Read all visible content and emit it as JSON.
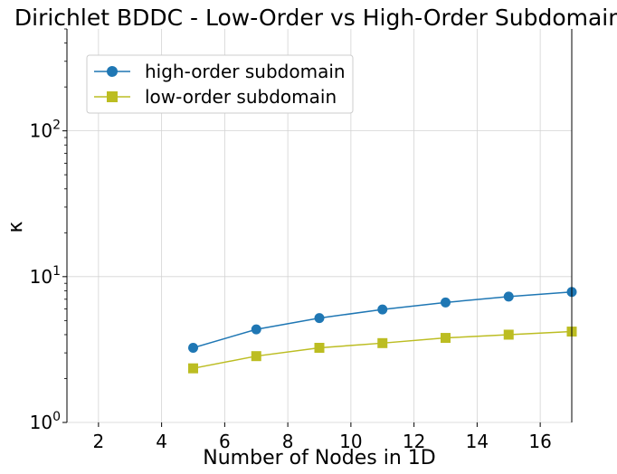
{
  "chart_data": {
    "type": "line",
    "title": "Dirichlet BDDC - Low-Order vs High-Order Subdomain",
    "xlabel": "Number of Nodes in 1D",
    "ylabel": "κ",
    "xlim": [
      1,
      17
    ],
    "ylim": [
      1,
      500
    ],
    "yscale": "log",
    "grid": true,
    "legend_position": "top-left",
    "x_ticks": [
      {
        "value": 2,
        "label": "2"
      },
      {
        "value": 4,
        "label": "4"
      },
      {
        "value": 6,
        "label": "6"
      },
      {
        "value": 8,
        "label": "8"
      },
      {
        "value": 10,
        "label": "10"
      },
      {
        "value": 12,
        "label": "12"
      },
      {
        "value": 14,
        "label": "14"
      },
      {
        "value": 16,
        "label": "16"
      }
    ],
    "y_ticks": [
      {
        "value": 1,
        "base": "10",
        "exp": "0"
      },
      {
        "value": 10,
        "base": "10",
        "exp": "1"
      },
      {
        "value": 100,
        "base": "10",
        "exp": "2"
      }
    ],
    "x": [
      5,
      7,
      9,
      11,
      13,
      15,
      17
    ],
    "series": [
      {
        "name": "high-order subdomain",
        "color": "#1f77b4",
        "marker": "circle",
        "values": [
          3.25,
          4.35,
          5.2,
          5.95,
          6.65,
          7.3,
          7.85
        ]
      },
      {
        "name": "low-order subdomain",
        "color": "#bcbd22",
        "marker": "square",
        "values": [
          2.35,
          2.85,
          3.25,
          3.5,
          3.8,
          4.0,
          4.2
        ]
      }
    ]
  }
}
